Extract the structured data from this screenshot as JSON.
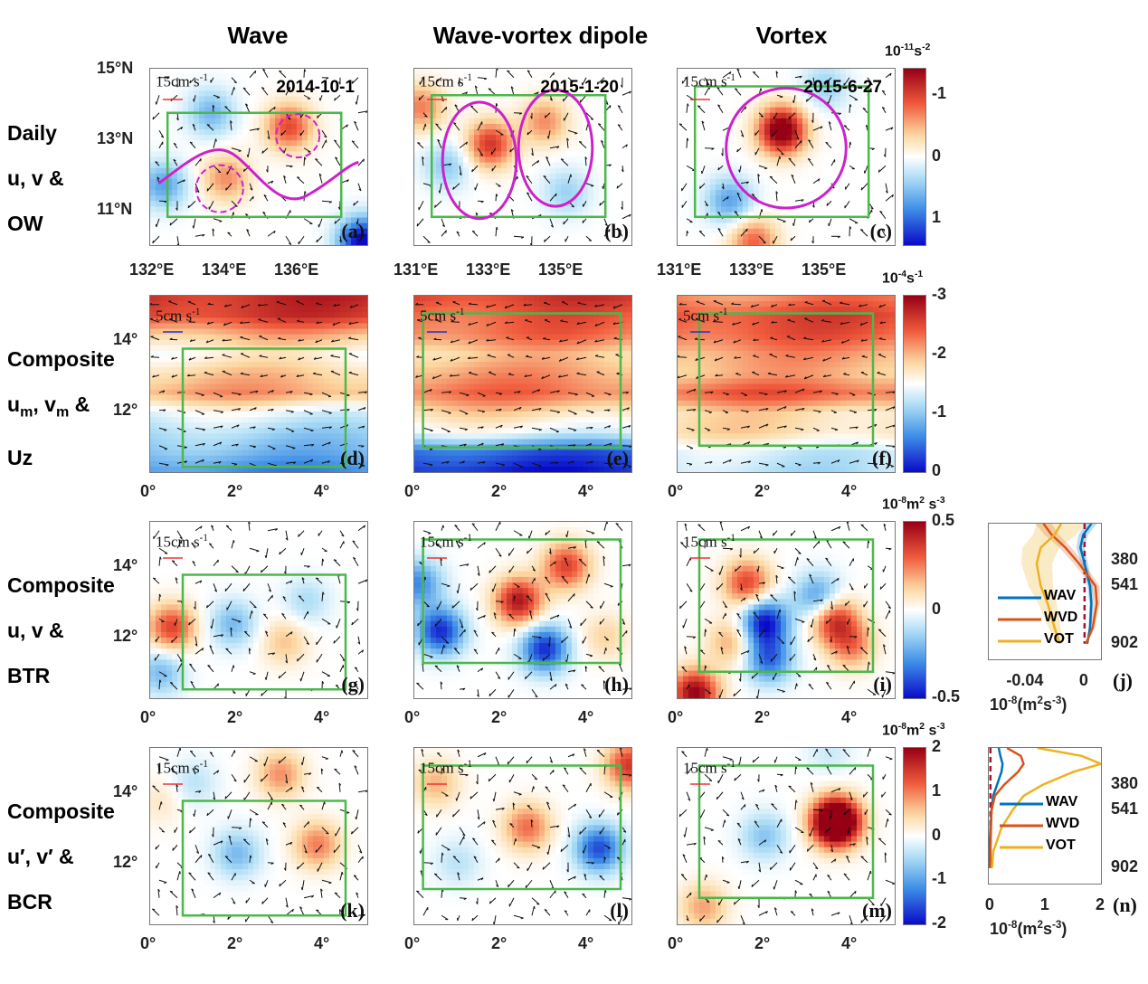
{
  "figure": {
    "column_titles": [
      "Wave",
      "Wave-vortex dipole",
      "Vortex"
    ],
    "row_labels": [
      [
        "Daily",
        "u, v &",
        "OW"
      ],
      [
        "Composite",
        "u_m, v_m &",
        "Uz"
      ],
      [
        "Composite",
        "u, v &",
        "BTR"
      ],
      [
        "Composite",
        "u′, v′ &",
        "BCR"
      ]
    ]
  },
  "chart_data": [
    {
      "type": "heatmap",
      "row": "Daily u, v & OW",
      "colorbar": {
        "unit": "10^-11 s^-2",
        "ticks": [
          "-1",
          "0",
          "1"
        ],
        "range": [
          -1.4,
          1.4
        ],
        "colormap": "reversed red-blue (red negative)"
      },
      "panels": [
        {
          "id": "(a)",
          "title": "Wave",
          "date": "2014-10-1",
          "scale_vector": "15cm s^-1",
          "x_ticks": [
            "132°E",
            "134°E",
            "136°E"
          ],
          "y_ticks": [
            "15°N",
            "13°N",
            "11°N"
          ],
          "features": [
            {
              "kind": "positive_ow",
              "x": 0.35,
              "y": 0.62,
              "amp": 0.55
            },
            {
              "kind": "positive_ow",
              "x": 0.64,
              "y": 0.33,
              "amp": 0.8
            },
            {
              "kind": "negative_ow",
              "x": 0.28,
              "y": 0.25,
              "amp": -0.5
            },
            {
              "kind": "negative_ow",
              "x": 0.06,
              "y": 0.66,
              "amp": -0.6
            },
            {
              "kind": "negative_ow",
              "x": 0.98,
              "y": 0.98,
              "amp": -1.3
            }
          ],
          "annotation": "sinusoidal wave path with two dashed eddies"
        },
        {
          "id": "(b)",
          "title": "Wave-vortex dipole",
          "date": "2015-1-20",
          "scale_vector": "15cm s^-1",
          "x_ticks": [
            "131°E",
            "133°E",
            "135°E"
          ],
          "y_ticks": [
            "15°N",
            "13°N",
            "11°N"
          ],
          "features": [
            {
              "kind": "positive_ow",
              "x": 0.35,
              "y": 0.43,
              "amp": 0.9
            },
            {
              "kind": "positive_ow",
              "x": 0.6,
              "y": 0.3,
              "amp": 0.55
            },
            {
              "kind": "positive_ow",
              "x": 0.03,
              "y": 0.22,
              "amp": 0.6
            },
            {
              "kind": "negative_ow",
              "x": 0.15,
              "y": 0.55,
              "amp": -0.4
            },
            {
              "kind": "negative_ow",
              "x": 0.7,
              "y": 0.7,
              "amp": -0.35
            }
          ],
          "annotation": "two adjacent closed loops (dipole)"
        },
        {
          "id": "(c)",
          "title": "Vortex",
          "date": "2015-6-27",
          "scale_vector": "15cm s^-1",
          "x_ticks": [
            "131°E",
            "133°E",
            "135°E"
          ],
          "y_ticks": [
            "15°N",
            "13°N",
            "11°N"
          ],
          "features": [
            {
              "kind": "positive_ow",
              "x": 0.48,
              "y": 0.35,
              "amp": 1.4
            },
            {
              "kind": "positive_ow",
              "x": 0.35,
              "y": 0.98,
              "amp": 0.7
            },
            {
              "kind": "negative_ow",
              "x": 0.24,
              "y": 0.75,
              "amp": -0.6
            },
            {
              "kind": "negative_ow",
              "x": 0.68,
              "y": 0.1,
              "amp": -0.35
            }
          ],
          "annotation": "single closed anticlockwise loop"
        }
      ]
    },
    {
      "type": "heatmap",
      "row": "Composite u_m, v_m & Uz",
      "colorbar": {
        "unit": "10^-4 s^-1",
        "ticks": [
          "-3",
          "-2",
          "-1",
          "0"
        ],
        "range": [
          -3,
          0
        ],
        "colormap": "red (−3) to blue (0)"
      },
      "panels": [
        {
          "id": "(d)",
          "scale_vector": "5cm s^-1",
          "x_ticks": [
            "0°",
            "2°",
            "4°"
          ],
          "y_ticks": [
            "14°",
            "12°"
          ],
          "bands": [
            -2.7,
            -2.6,
            -2.0,
            -1.6,
            -1.9,
            -2.1,
            -1.4,
            -1.1,
            -0.9,
            -0.6
          ]
        },
        {
          "id": "(e)",
          "scale_vector": "5cm s^-1",
          "x_ticks": [
            "0°",
            "2°",
            "4°"
          ],
          "y_ticks": [
            "14°",
            "12°"
          ],
          "bands": [
            -2.6,
            -2.4,
            -2.3,
            -1.9,
            -2.1,
            -2.3,
            -1.8,
            -1.4,
            -0.4,
            -0.1
          ]
        },
        {
          "id": "(f)",
          "scale_vector": "5cm s^-1",
          "x_ticks": [
            "0°",
            "2°",
            "4°"
          ],
          "y_ticks": [
            "14°",
            "12°"
          ],
          "bands": [
            -2.2,
            -2.5,
            -2.4,
            -2.1,
            -2.0,
            -2.4,
            -1.8,
            -1.8,
            -1.3,
            -1.2
          ]
        }
      ]
    },
    {
      "type": "heatmap",
      "row": "Composite u, v & BTR",
      "colorbar": {
        "unit": "10^-8 m^2 s^-3",
        "ticks": [
          "0.5",
          "0",
          "-0.5"
        ],
        "range": [
          -0.5,
          0.5
        ]
      },
      "panels": [
        {
          "id": "(g)",
          "scale_vector": "15cm s^-1",
          "x_ticks": [
            "0°",
            "2°",
            "4°"
          ],
          "y_ticks": [
            "14°",
            "12°"
          ],
          "features": [
            {
              "x": 0.1,
              "y": 0.6,
              "amp": 0.35
            },
            {
              "x": 0.38,
              "y": 0.58,
              "amp": -0.2
            },
            {
              "x": 0.62,
              "y": 0.68,
              "amp": 0.15
            },
            {
              "x": 0.72,
              "y": 0.45,
              "amp": -0.12
            },
            {
              "x": 0.05,
              "y": 0.85,
              "amp": -0.2
            }
          ]
        },
        {
          "id": "(h)",
          "scale_vector": "15cm s^-1",
          "x_ticks": [
            "0°",
            "2°",
            "4°"
          ],
          "y_ticks": [
            "14°",
            "12°"
          ],
          "features": [
            {
              "x": 0.48,
              "y": 0.45,
              "amp": 0.45
            },
            {
              "x": 0.7,
              "y": 0.25,
              "amp": 0.35
            },
            {
              "x": 0.12,
              "y": 0.62,
              "amp": -0.45
            },
            {
              "x": 0.6,
              "y": 0.72,
              "amp": -0.45
            },
            {
              "x": 0.02,
              "y": 0.35,
              "amp": -0.3
            },
            {
              "x": 0.88,
              "y": 0.65,
              "amp": 0.12
            }
          ]
        },
        {
          "id": "(i)",
          "scale_vector": "15cm s^-1",
          "x_ticks": [
            "0°",
            "2°",
            "4°"
          ],
          "y_ticks": [
            "14°",
            "12°"
          ],
          "features": [
            {
              "x": 0.32,
              "y": 0.35,
              "amp": 0.35
            },
            {
              "x": 0.72,
              "y": 0.55,
              "amp": 0.4
            },
            {
              "x": 0.8,
              "y": 0.7,
              "amp": 0.25
            },
            {
              "x": 0.4,
              "y": 0.57,
              "amp": -0.5
            },
            {
              "x": 0.65,
              "y": 0.43,
              "amp": -0.3
            },
            {
              "x": 0.42,
              "y": 0.78,
              "amp": -0.35
            },
            {
              "x": 0.08,
              "y": 0.97,
              "amp": 0.5
            },
            {
              "x": 0.25,
              "y": 0.68,
              "amp": 0.2
            }
          ]
        }
      ]
    },
    {
      "type": "heatmap",
      "row": "Composite u′, v′ & BCR",
      "colorbar": {
        "unit": "10^-8 m^2 s^-3",
        "ticks": [
          "2",
          "1",
          "0",
          "-1",
          "-2"
        ],
        "range": [
          -2,
          2
        ]
      },
      "panels": [
        {
          "id": "(k)",
          "scale_vector": "15cm s^-1",
          "x_ticks": [
            "0°",
            "2°",
            "4°"
          ],
          "y_ticks": [
            "14°",
            "12°"
          ],
          "features": [
            {
              "x": 0.6,
              "y": 0.15,
              "amp": 0.9
            },
            {
              "x": 0.77,
              "y": 0.55,
              "amp": 1.0
            },
            {
              "x": 0.4,
              "y": 0.6,
              "amp": -0.8
            },
            {
              "x": 0.2,
              "y": 0.2,
              "amp": -0.4
            },
            {
              "x": 0.05,
              "y": 0.3,
              "amp": 0.3
            }
          ]
        },
        {
          "id": "(l)",
          "scale_vector": "15cm s^-1",
          "x_ticks": [
            "0°",
            "2°",
            "4°"
          ],
          "y_ticks": [
            "14°",
            "12°"
          ],
          "features": [
            {
              "x": 0.52,
              "y": 0.45,
              "amp": 1.1
            },
            {
              "x": 0.85,
              "y": 0.57,
              "amp": -1.6
            },
            {
              "x": 0.99,
              "y": 0.1,
              "amp": 1.5
            },
            {
              "x": 0.1,
              "y": 0.2,
              "amp": 0.7
            },
            {
              "x": 0.2,
              "y": 0.65,
              "amp": -0.4
            }
          ]
        },
        {
          "id": "(m)",
          "scale_vector": "15cm s^-1",
          "x_ticks": [
            "0°",
            "2°",
            "4°"
          ],
          "y_ticks": [
            "14°",
            "12°"
          ],
          "features": [
            {
              "x": 0.73,
              "y": 0.42,
              "amp": 3.5
            },
            {
              "x": 0.4,
              "y": 0.5,
              "amp": -0.7
            },
            {
              "x": 0.12,
              "y": 0.9,
              "amp": 0.8
            },
            {
              "x": 0.7,
              "y": 0.03,
              "amp": -0.3
            }
          ]
        }
      ]
    },
    {
      "type": "line",
      "id": "(j)",
      "xlabel": "10^-8 (m^2 s^-3)",
      "x_ticks": [
        "-0.04",
        "0"
      ],
      "xlim": [
        -0.07,
        0.012
      ],
      "y_ticks": [
        "380",
        "541",
        "902"
      ],
      "ylim": [
        150,
        1000
      ],
      "y_invert": true,
      "legend": "center-left",
      "series": [
        {
          "name": "WAV",
          "color": "#0072BD",
          "depth": [
            150,
            220,
            300,
            400,
            541,
            650,
            800,
            902
          ],
          "values": [
            0.005,
            -0.001,
            -0.003,
            0.0,
            0.004,
            0.005,
            0.004,
            0.002
          ]
        },
        {
          "name": "WVD",
          "color": "#D95319",
          "depth": [
            150,
            220,
            300,
            400,
            541,
            650,
            800,
            902
          ],
          "values": [
            -0.03,
            -0.024,
            -0.014,
            -0.004,
            0.008,
            0.009,
            0.006,
            0.001
          ]
        },
        {
          "name": "VOT",
          "color": "#EDB120",
          "depth": [
            150,
            220,
            300,
            400,
            541,
            650,
            800,
            902
          ],
          "values": [
            -0.017,
            -0.022,
            -0.032,
            -0.035,
            -0.032,
            -0.027,
            -0.022,
            -0.018
          ]
        }
      ],
      "zero_line": {
        "color": "#A2142F",
        "style": "dashed"
      }
    },
    {
      "type": "line",
      "id": "(n)",
      "xlabel": "10^-8 (m^2 s^-3)",
      "x_ticks": [
        "0",
        "1",
        "2"
      ],
      "xlim": [
        -0.03,
        2.0
      ],
      "y_ticks": [
        "380",
        "541",
        "902"
      ],
      "ylim": [
        150,
        1000
      ],
      "y_invert": true,
      "legend": "center",
      "series": [
        {
          "name": "WAV",
          "color": "#0072BD",
          "depth": [
            150,
            200,
            250,
            300,
            380,
            450,
            541,
            650,
            800,
            902
          ],
          "values": [
            0.15,
            0.18,
            0.22,
            0.2,
            0.12,
            0.05,
            0.02,
            0.0,
            -0.02,
            -0.03
          ]
        },
        {
          "name": "WVD",
          "color": "#D95319",
          "depth": [
            150,
            200,
            250,
            300,
            380,
            450,
            541,
            650,
            800,
            902
          ],
          "values": [
            0.3,
            0.55,
            0.6,
            0.5,
            0.25,
            0.08,
            0.02,
            0.01,
            0.0,
            0.0
          ]
        },
        {
          "name": "VOT",
          "color": "#EDB120",
          "depth": [
            150,
            200,
            250,
            300,
            380,
            450,
            541,
            650,
            800,
            902
          ],
          "values": [
            0.85,
            1.65,
            2.0,
            1.5,
            0.95,
            0.6,
            0.4,
            0.2,
            0.05,
            0.03
          ]
        }
      ],
      "zero_line": {
        "color": "#A2142F",
        "style": "dashed"
      }
    }
  ]
}
